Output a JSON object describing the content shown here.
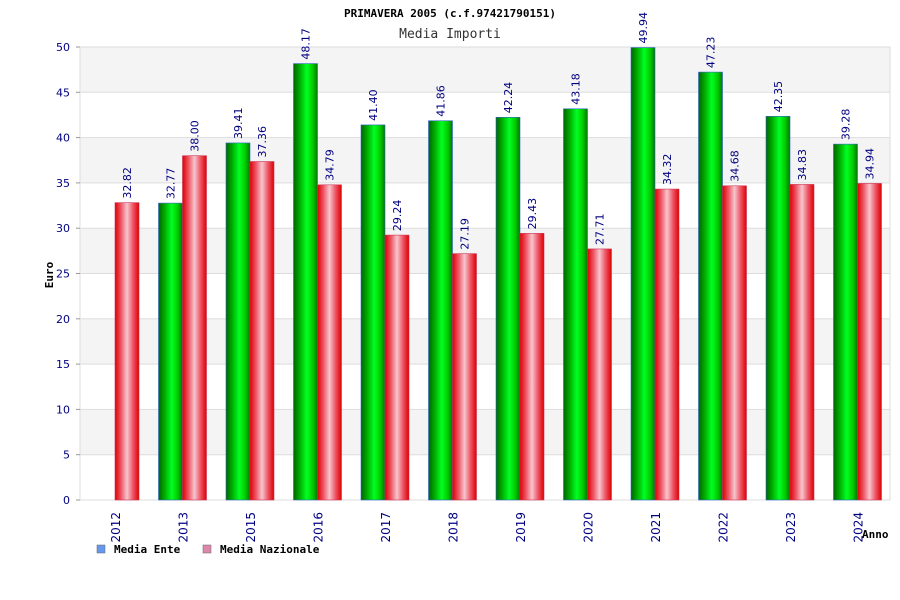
{
  "chart_data": {
    "type": "bar",
    "title": "PRIMAVERA 2005 (c.f.97421790151)",
    "subtitle": "Media Importi",
    "xlabel": "Anno",
    "ylabel": "Euro",
    "ylim": [
      0,
      50
    ],
    "yticks": [
      0,
      5,
      10,
      15,
      20,
      25,
      30,
      35,
      40,
      45,
      50
    ],
    "grid": true,
    "legend_position": "bottom-left",
    "categories": [
      "2012",
      "2013",
      "2015",
      "2016",
      "2017",
      "2018",
      "2019",
      "2020",
      "2021",
      "2022",
      "2023",
      "2024"
    ],
    "series": [
      {
        "name": "Media Ente",
        "color": "#00cc00",
        "legend_color": "#6699ee",
        "values": [
          null,
          32.77,
          39.41,
          48.17,
          41.4,
          41.86,
          42.24,
          43.18,
          49.94,
          47.23,
          42.35,
          39.28
        ],
        "labels": [
          "",
          "32.77",
          "39.41",
          "48.17",
          "41.40",
          "41.86",
          "42.24",
          "43.18",
          "49.94",
          "47.23",
          "42.35",
          "39.28"
        ]
      },
      {
        "name": "Media Nazionale",
        "color": "#ee2222",
        "legend_color": "#dd88aa",
        "values": [
          32.82,
          38.0,
          37.36,
          34.79,
          29.24,
          27.19,
          29.43,
          27.71,
          34.32,
          34.68,
          34.83,
          34.94
        ],
        "labels": [
          "32.82",
          "38.00",
          "37.36",
          "34.79",
          "29.24",
          "27.19",
          "29.43",
          "27.71",
          "34.32",
          "34.68",
          "34.83",
          "34.94"
        ]
      }
    ]
  }
}
